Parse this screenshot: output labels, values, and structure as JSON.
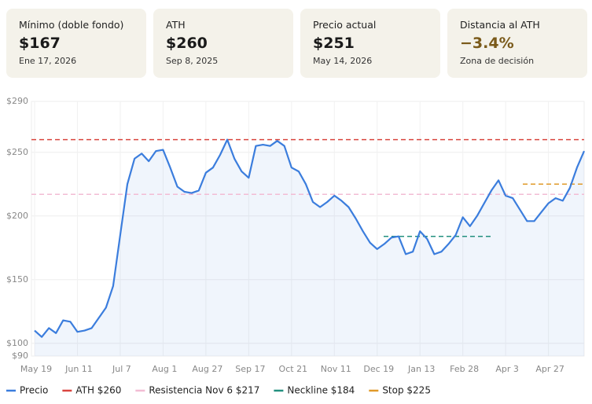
{
  "cards": [
    {
      "title": "Mínimo (doble fondo)",
      "value": "$167",
      "sub": "Ene 17, 2026"
    },
    {
      "title": "ATH",
      "value": "$260",
      "sub": "Sep 8, 2025"
    },
    {
      "title": "Precio actual",
      "value": "$251",
      "sub": "May 14, 2026"
    },
    {
      "title": "Distancia al ATH",
      "value": "−3.4%",
      "sub": "Zona de decisión",
      "color": "#7a5a1a"
    }
  ],
  "chart_data": {
    "type": "line",
    "categories": [
      "May 19",
      null,
      null,
      null,
      null,
      null,
      "Jun 11",
      null,
      null,
      null,
      null,
      null,
      "Jul 7",
      null,
      null,
      null,
      null,
      null,
      "Aug 1",
      null,
      null,
      null,
      null,
      null,
      "Aug 27",
      null,
      null,
      null,
      null,
      null,
      "Sep 17",
      null,
      null,
      null,
      null,
      null,
      "Oct 21",
      null,
      null,
      null,
      null,
      null,
      "Nov 11",
      null,
      null,
      null,
      null,
      null,
      "Dec 19",
      null,
      null,
      null,
      null,
      null,
      "Jan 13",
      null,
      null,
      null,
      null,
      null,
      "Feb 28",
      null,
      null,
      null,
      null,
      null,
      "Apr 3",
      null,
      null,
      null,
      null,
      null,
      "Apr 27",
      null,
      null,
      null,
      null,
      null
    ],
    "series": [
      {
        "name": "Precio",
        "color": "#3b7ddd",
        "values": [
          110,
          105,
          112,
          108,
          118,
          117,
          109,
          110,
          112,
          120,
          128,
          145,
          185,
          225,
          245,
          249,
          243,
          251,
          252,
          238,
          223,
          219,
          218,
          220,
          234,
          238,
          248,
          260,
          245,
          235,
          230,
          255,
          256,
          255,
          259,
          255,
          238,
          235,
          225,
          211,
          207,
          211,
          216,
          212,
          207,
          198,
          188,
          179,
          174,
          178,
          183,
          184,
          170,
          172,
          188,
          182,
          170,
          172,
          178,
          185,
          199,
          192,
          200,
          210,
          220,
          228,
          216,
          214,
          205,
          196,
          196,
          203,
          210,
          214,
          212,
          222,
          238,
          251
        ]
      }
    ],
    "reference_lines": [
      {
        "name": "ATH $260",
        "value": 260,
        "color": "#d9453f"
      },
      {
        "name": "Resistencia Nov 6 $217",
        "value": 217,
        "color": "#f2bcd4"
      },
      {
        "name": "Neckline $184",
        "value": 184,
        "color": "#23907f"
      },
      {
        "name": "Stop $225",
        "value": 225,
        "color": "#e09a2a"
      }
    ],
    "ylim": [
      90,
      290
    ],
    "yticks": [
      {
        "value": 90,
        "label": "$90"
      },
      {
        "value": 100,
        "label": "$100"
      },
      {
        "value": 150,
        "label": "$150"
      },
      {
        "value": 200,
        "label": "$200"
      },
      {
        "value": 250,
        "label": "$250"
      },
      {
        "value": 290,
        "label": "$290"
      }
    ],
    "grid": true
  }
}
